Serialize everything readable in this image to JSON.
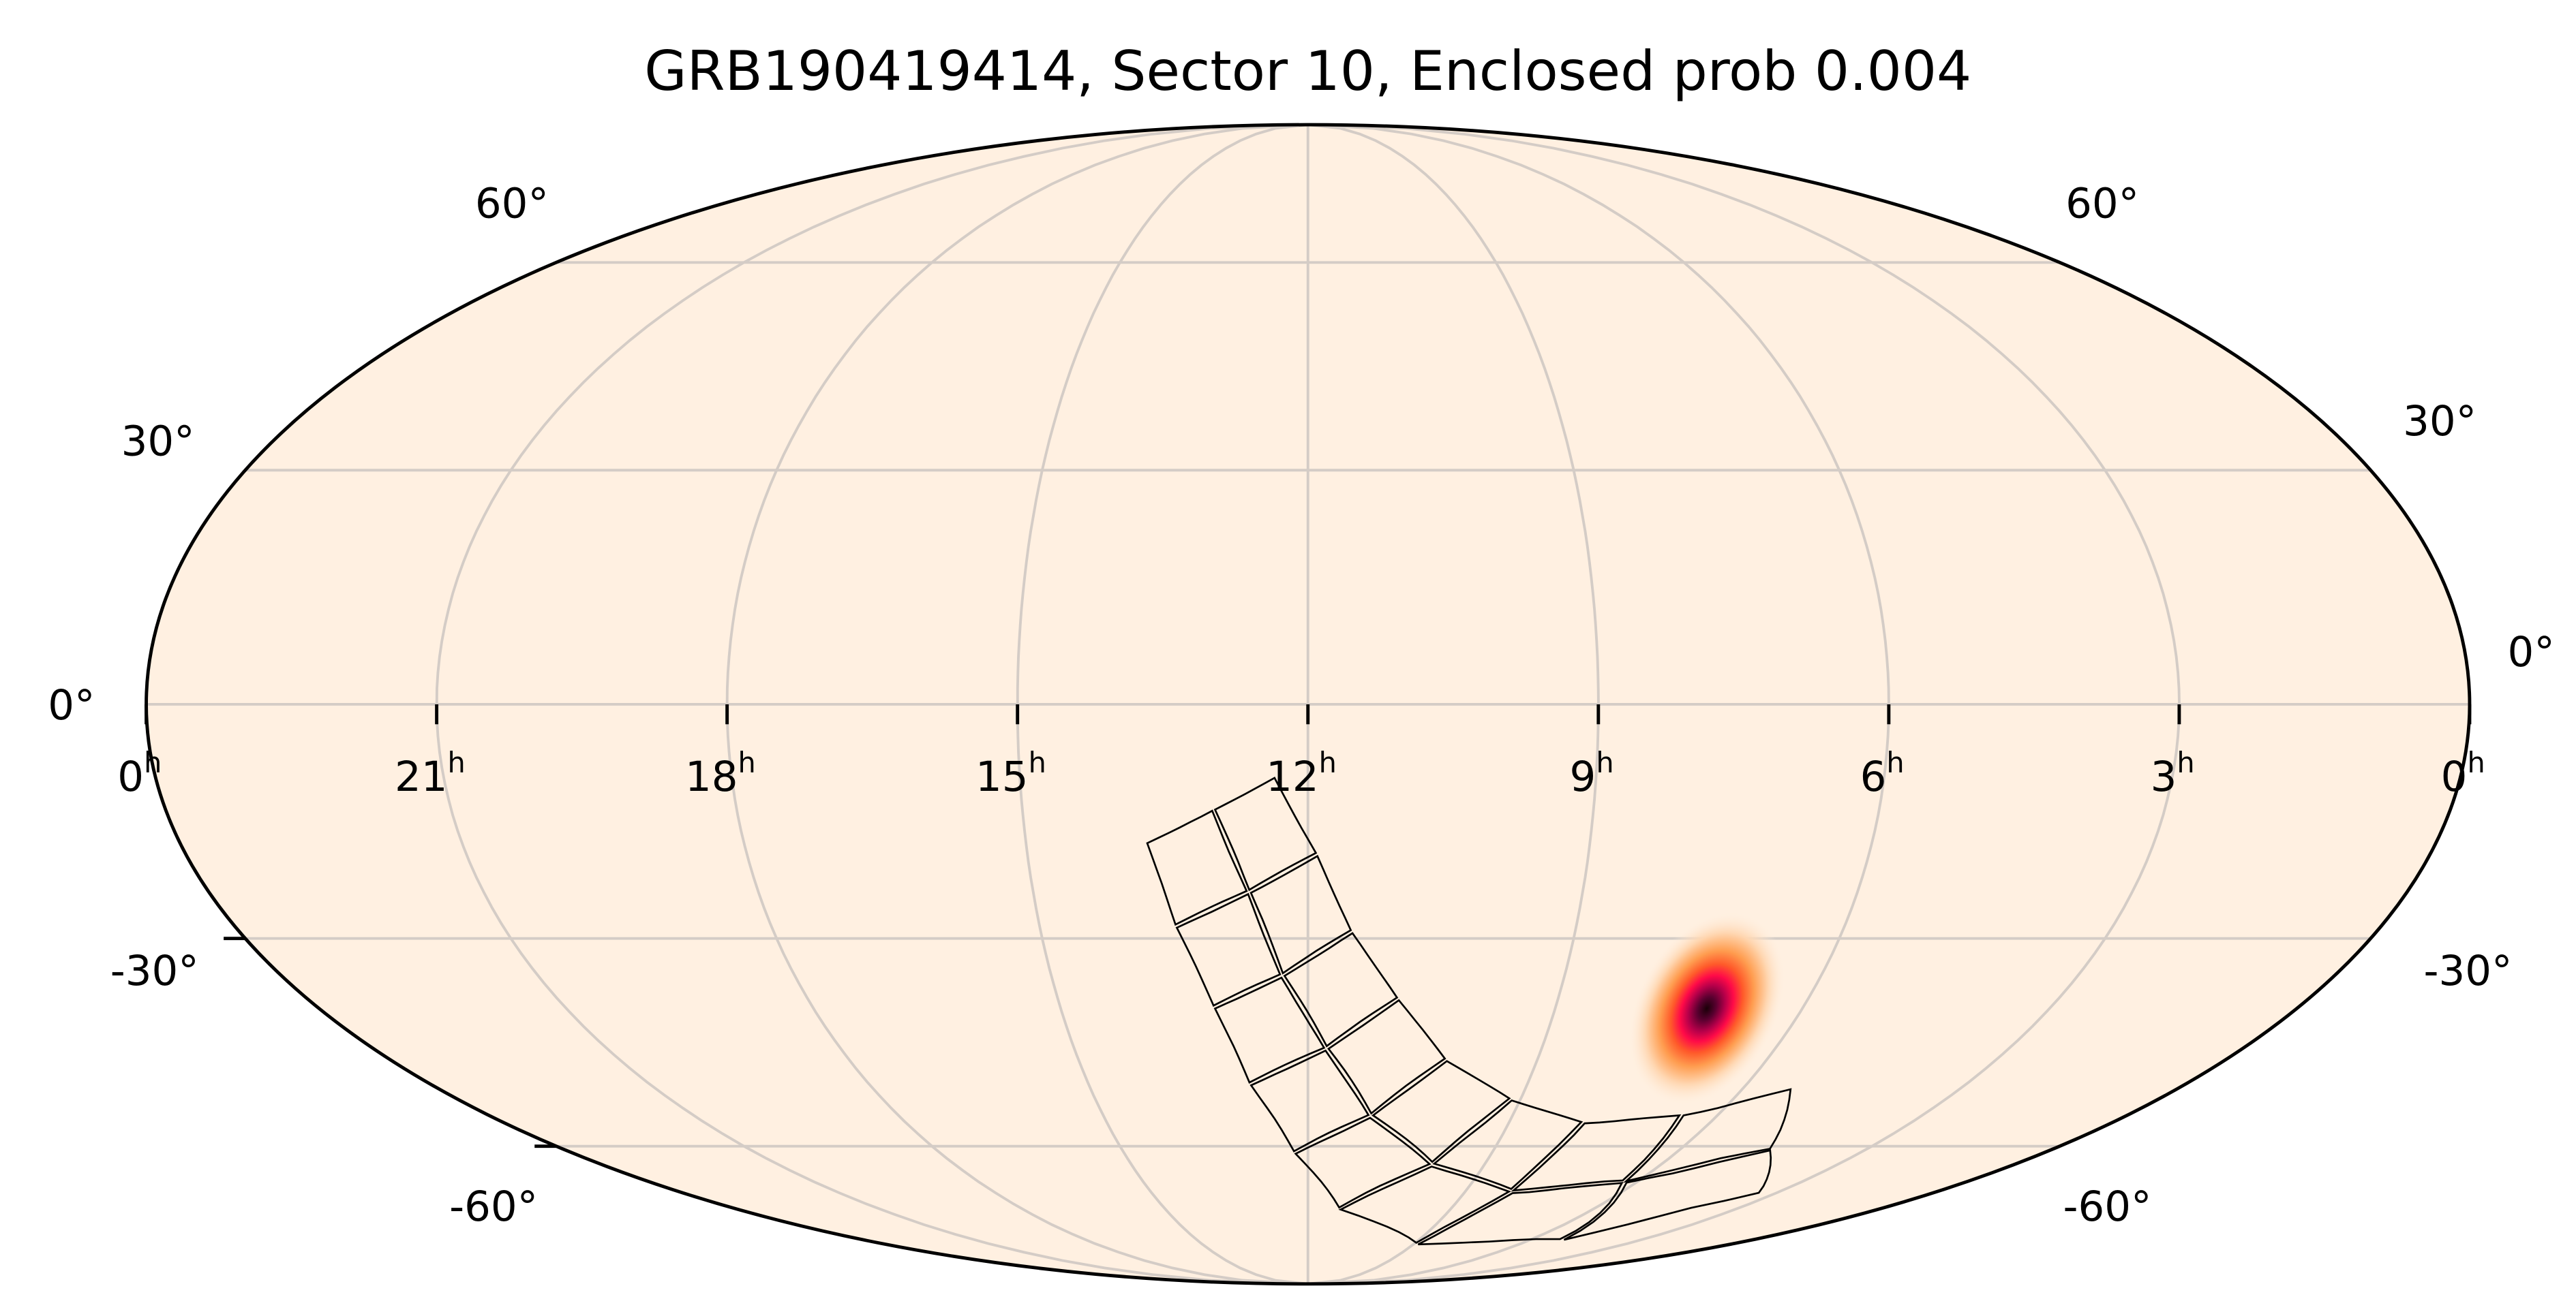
{
  "chart_data": {
    "type": "heatmap",
    "projection": "mollweide",
    "title": "GRB190419414, Sector 10, Enclosed prob 0.004",
    "grid": true,
    "ra_ticks": [
      {
        "ra_deg": 360,
        "label": "0",
        "unit": "h"
      },
      {
        "ra_deg": 315,
        "label": "21",
        "unit": "h"
      },
      {
        "ra_deg": 270,
        "label": "18",
        "unit": "h"
      },
      {
        "ra_deg": 225,
        "label": "15",
        "unit": "h"
      },
      {
        "ra_deg": 180,
        "label": "12",
        "unit": "h"
      },
      {
        "ra_deg": 135,
        "label": "9",
        "unit": "h"
      },
      {
        "ra_deg": 90,
        "label": "6",
        "unit": "h"
      },
      {
        "ra_deg": 45,
        "label": "3",
        "unit": "h"
      },
      {
        "ra_deg": 0,
        "label": "0",
        "unit": "h"
      }
    ],
    "dec_ticks_left": [
      "60°",
      "30°",
      "0°",
      "-30°",
      "-60°"
    ],
    "dec_ticks_right": [
      "60°",
      "30°",
      "0°",
      "-30°",
      "-60°"
    ],
    "dec_values": [
      60,
      30,
      0,
      -30,
      -60
    ],
    "colors": {
      "background": "#fff0e1",
      "grid": "#d4ccc6",
      "footprint": "#000000",
      "colormap": [
        "#fff0e1",
        "#ffd3a8",
        "#ff9a4a",
        "#ff4a2c",
        "#f0064a",
        "#a0003e",
        "#1a0008"
      ]
    },
    "localization": {
      "peak_ra_deg": 107.4,
      "peak_dec_deg": -39.5
    },
    "footprint_grid_radec": [
      [
        [
          205.98,
          -17.45
        ],
        [
          194.97,
          -13.17
        ],
        [
          185.14,
          -8.98
        ]
      ],
      [
        [
          202.36,
          -28.44
        ],
        [
          189.69,
          -23.89
        ],
        [
          178.37,
          -18.95
        ]
      ],
      [
        [
          197.29,
          -39.4
        ],
        [
          184.52,
          -34.96
        ],
        [
          172.42,
          -28.99
        ]
      ],
      [
        [
          192.15,
          -50.45
        ],
        [
          176.48,
          -45.14
        ],
        [
          163.57,
          -38.05
        ]
      ],
      [
        [
          183.58,
          -61.19
        ],
        [
          166.19,
          -55.14
        ],
        [
          152.73,
          -46.62
        ]
      ],
      [
        [
          170.37,
          -71.1
        ],
        [
          148.44,
          -62.98
        ],
        [
          136.97,
          -52.46
        ]
      ],
      [
        [
          133.61,
          -78.32
        ],
        [
          121.9,
          -67.69
        ],
        [
          118.53,
          -56.03
        ]
      ],
      [
        [
          76.3,
          -77.35
        ],
        [
          93.41,
          -66.08
        ],
        [
          98.1,
          -54.94
        ]
      ],
      [
        [
          49.5,
          -67.97
        ],
        [
          67.7,
          -60.52
        ],
        [
          79.8,
          -50.95
        ]
      ]
    ]
  }
}
